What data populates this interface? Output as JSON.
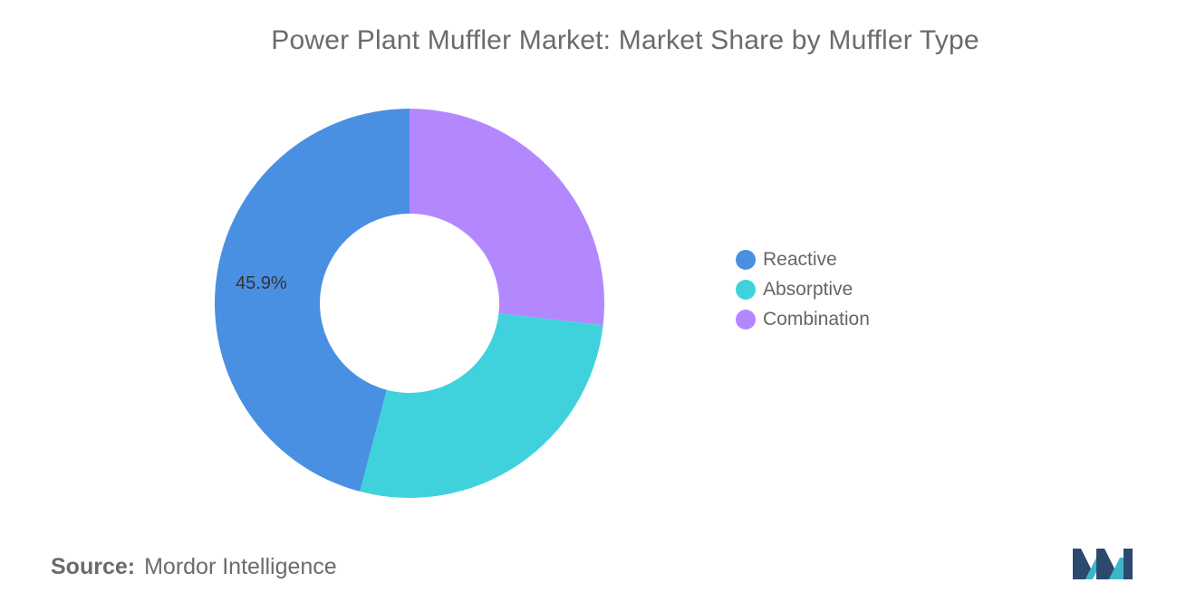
{
  "chart_data": {
    "type": "pie",
    "title": "Power Plant Muffler Market: Market Share by Muffler Type",
    "slices": [
      {
        "label": "Combination",
        "value": 26.8,
        "color": "#b388ff",
        "value_label": ""
      },
      {
        "label": "Absorptive",
        "value": 27.3,
        "color": "#40d2dc",
        "value_label": ""
      },
      {
        "label": "Reactive",
        "value": 45.9,
        "color": "#4a90e2",
        "value_label": "45.9%"
      }
    ],
    "legend": {
      "placement": "right",
      "entries": [
        {
          "label": "Reactive",
          "color": "#4a90e2"
        },
        {
          "label": "Absorptive",
          "color": "#40d2dc"
        },
        {
          "label": "Combination",
          "color": "#b388ff"
        }
      ]
    },
    "donut": true
  },
  "footer": {
    "source_prefix": "Source:",
    "source_name": "Mordor Intelligence"
  },
  "logo": {
    "icon": "mordor-intelligence-logo-icon",
    "colors": [
      "#2c4a6e",
      "#3ab7c9"
    ]
  }
}
